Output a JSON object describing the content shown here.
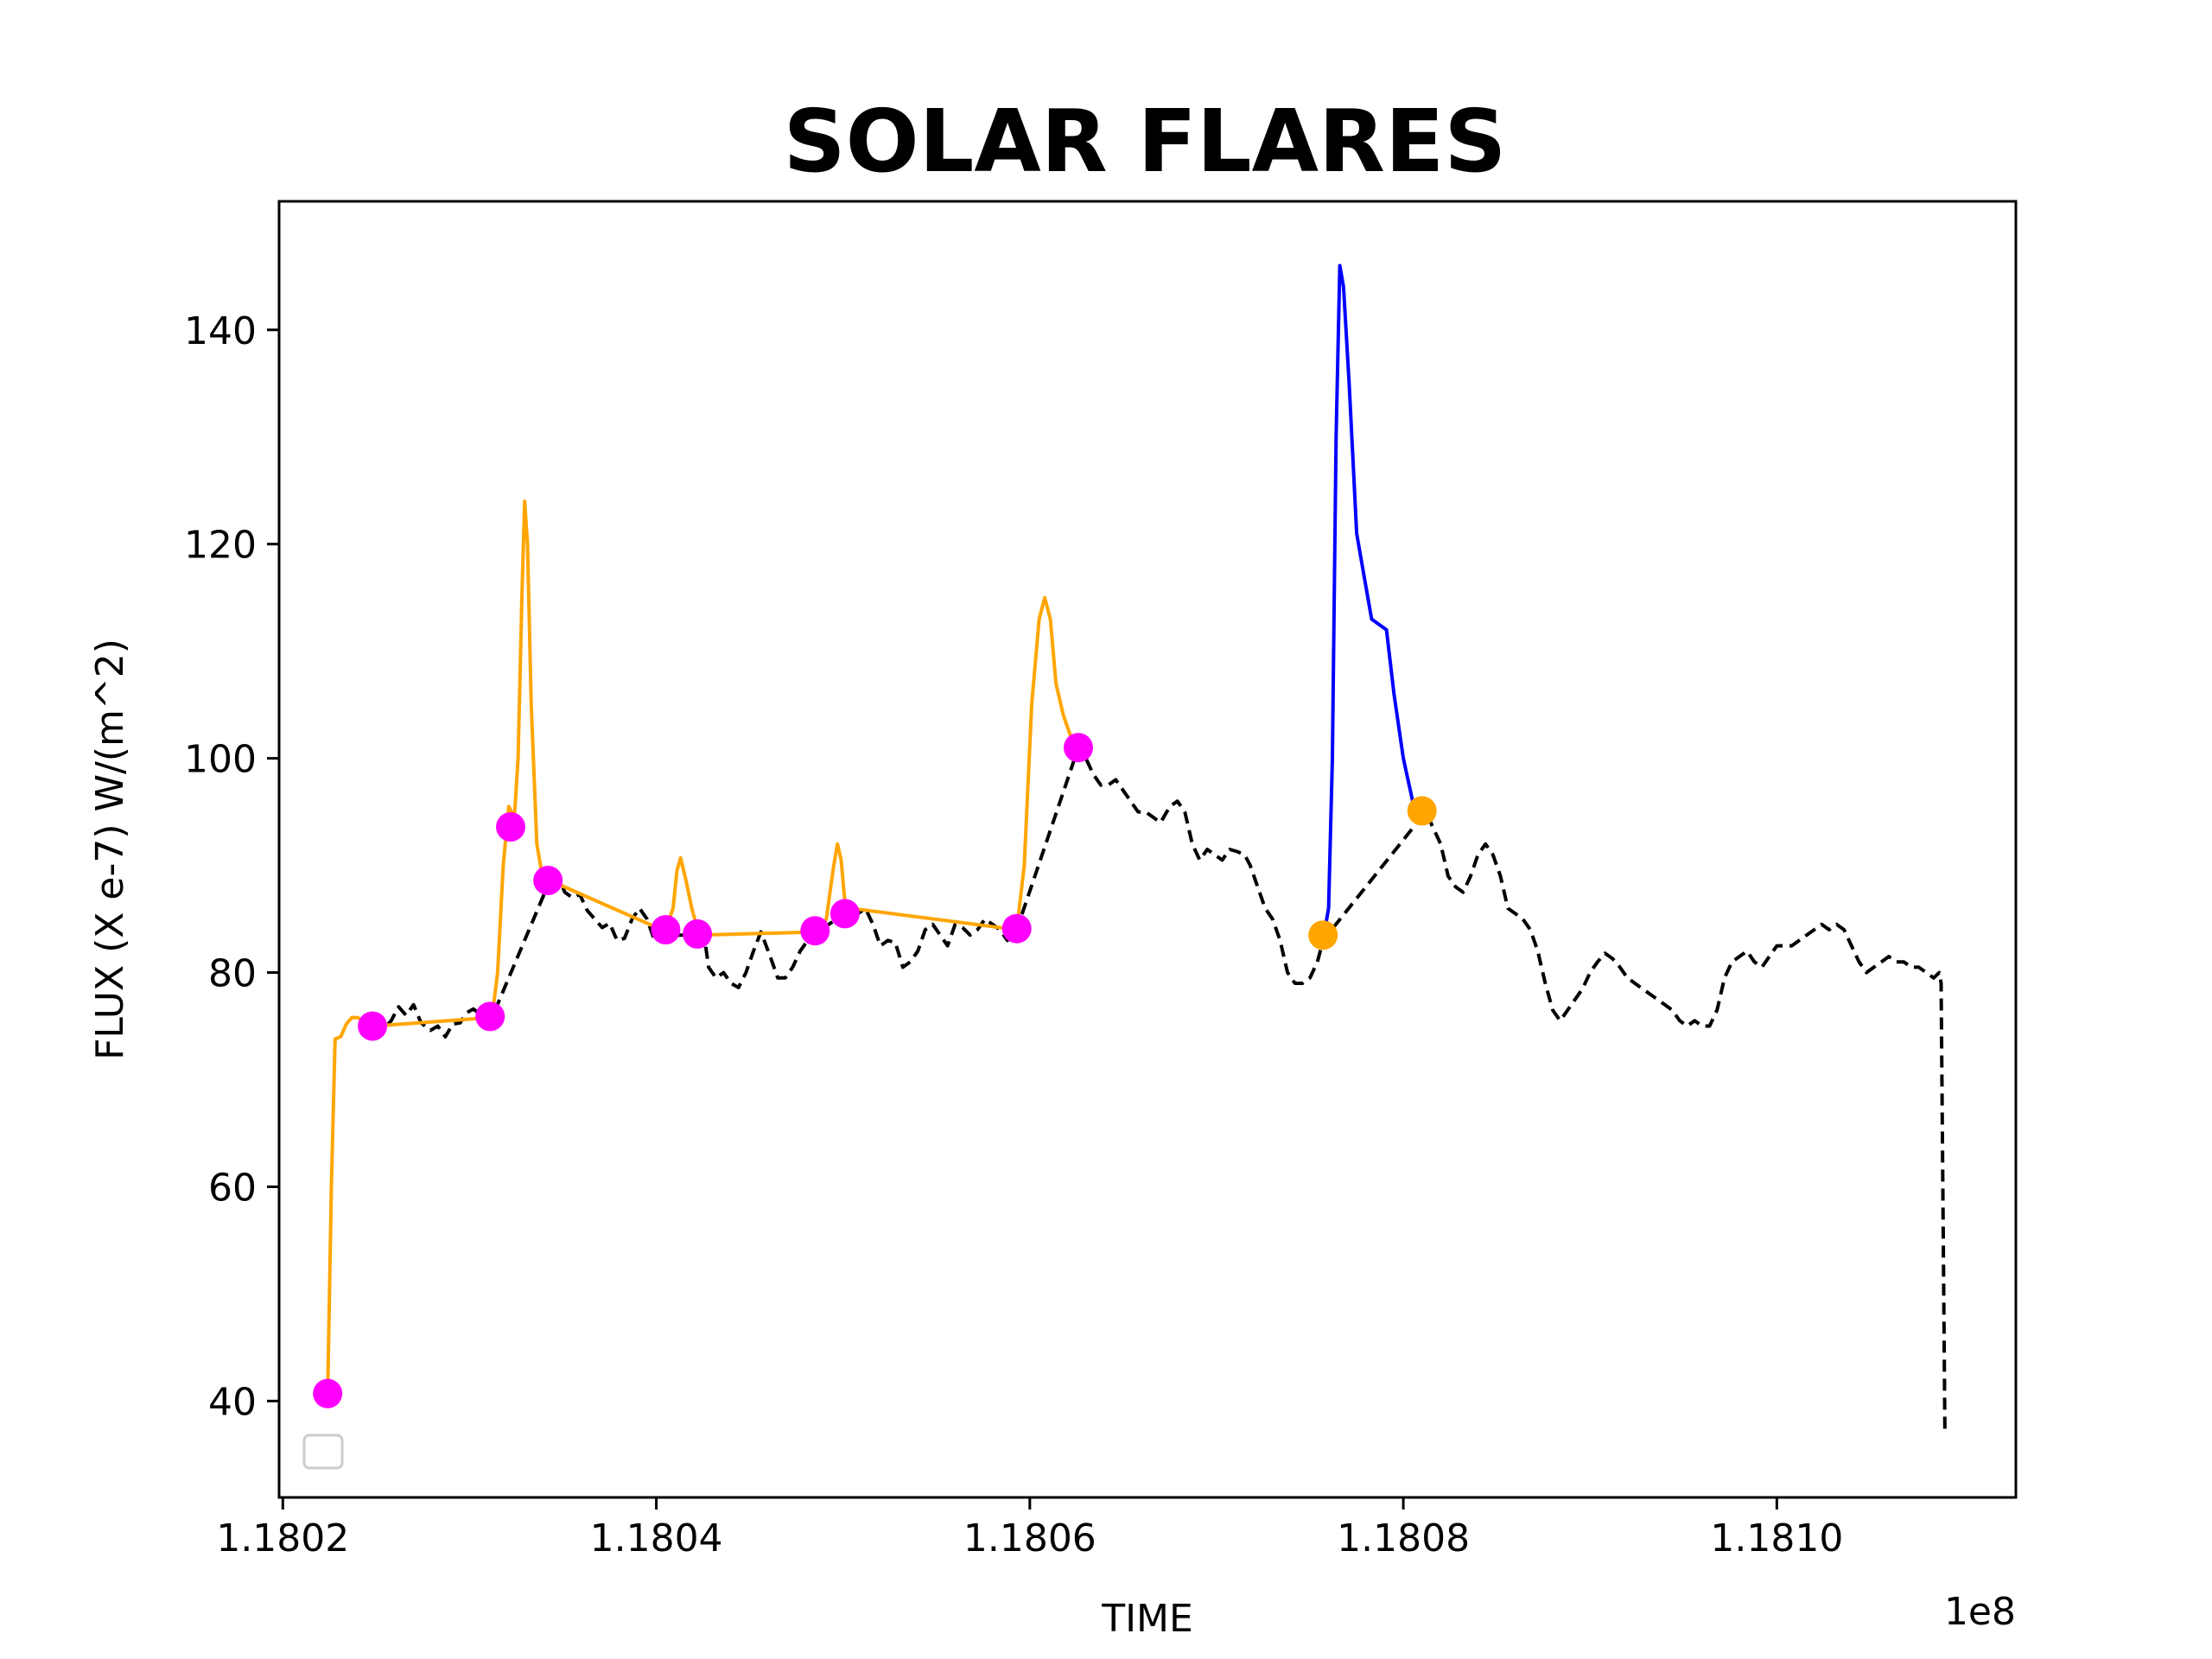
{
  "chart_data": {
    "type": "line",
    "title": "SOLAR FLARES",
    "xlabel": "TIME",
    "ylabel": "FLUX (X e-7) W/(m^2)",
    "x_offset_label": "1e8",
    "xlim": [
      118019800,
      118112800
    ],
    "ylim": [
      31,
      152
    ],
    "x_ticks": [
      {
        "value": 118020000,
        "label": "1.1802"
      },
      {
        "value": 118040000,
        "label": "1.1804"
      },
      {
        "value": 118060000,
        "label": "1.1806"
      },
      {
        "value": 118080000,
        "label": "1.1808"
      },
      {
        "value": 118100000,
        "label": "1.1810"
      }
    ],
    "y_ticks": [
      {
        "value": 40,
        "label": "40"
      },
      {
        "value": 60,
        "label": "60"
      },
      {
        "value": 80,
        "label": "80"
      },
      {
        "value": 100,
        "label": "100"
      },
      {
        "value": 120,
        "label": "120"
      },
      {
        "value": 140,
        "label": "140"
      }
    ],
    "grid": false,
    "legend": {
      "location": "lower-left",
      "entries": []
    },
    "colors": {
      "background": "#000000",
      "flare_minor": "#ffa500",
      "flare_major": "#0000ff",
      "marker_minor": "#ff00ff",
      "marker_major": "#ffa500"
    },
    "series": [
      {
        "style": "dashed",
        "color": "#000000",
        "points": [
          [
            118024900,
            75.0
          ],
          [
            118025300,
            74.5
          ],
          [
            118025800,
            75.5
          ],
          [
            118026200,
            76.8
          ],
          [
            118026600,
            76.0
          ],
          [
            118027000,
            77.0
          ],
          [
            118027400,
            75.3
          ],
          [
            118027900,
            74.6
          ],
          [
            118028300,
            75.0
          ],
          [
            118028700,
            74.0
          ],
          [
            118029100,
            75.2
          ],
          [
            118029500,
            75.3
          ],
          [
            118029800,
            76.2
          ],
          [
            118030200,
            76.6
          ],
          [
            118030600,
            76.1
          ],
          [
            118031000,
            75.5
          ],
          [
            118031200,
            75.8
          ],
          [
            118034300,
            88.6
          ],
          [
            118034600,
            89.5
          ],
          [
            118035100,
            87.5
          ],
          [
            118035500,
            87.0
          ],
          [
            118035900,
            87.3
          ],
          [
            118036300,
            85.8
          ],
          [
            118036700,
            85.0
          ],
          [
            118037100,
            84.2
          ],
          [
            118037500,
            84.6
          ],
          [
            118037900,
            83.0
          ],
          [
            118038300,
            83.2
          ],
          [
            118038700,
            85.0
          ],
          [
            118039100,
            86.0
          ],
          [
            118039500,
            85.0
          ],
          [
            118039900,
            83.0
          ],
          [
            118040300,
            83.5
          ],
          [
            118042300,
            83.5
          ],
          [
            118042600,
            83.0
          ],
          [
            118042800,
            80.5
          ],
          [
            118043200,
            79.5
          ],
          [
            118043600,
            80.0
          ],
          [
            118044000,
            79.0
          ],
          [
            118044400,
            78.6
          ],
          [
            118044800,
            80.0
          ],
          [
            118045200,
            82.0
          ],
          [
            118045600,
            83.8
          ],
          [
            118046100,
            81.5
          ],
          [
            118046500,
            79.5
          ],
          [
            118046900,
            79.5
          ],
          [
            118047300,
            80.5
          ],
          [
            118047700,
            82.0
          ],
          [
            118048100,
            83.0
          ],
          [
            118048500,
            84.0
          ],
          [
            118048700,
            83.8
          ],
          [
            118050400,
            86.0
          ],
          [
            118050800,
            85.5
          ],
          [
            118051200,
            86.0
          ],
          [
            118051600,
            84.5
          ],
          [
            118052000,
            82.5
          ],
          [
            118052400,
            83.0
          ],
          [
            118052800,
            82.8
          ],
          [
            118053200,
            80.5
          ],
          [
            118053600,
            81.0
          ],
          [
            118054000,
            82.0
          ],
          [
            118054400,
            84.0
          ],
          [
            118054800,
            84.5
          ],
          [
            118055200,
            83.5
          ],
          [
            118055600,
            82.5
          ],
          [
            118056000,
            84.5
          ],
          [
            118056400,
            84.2
          ],
          [
            118056800,
            83.5
          ],
          [
            118057200,
            84.0
          ],
          [
            118057600,
            85.0
          ],
          [
            118058000,
            84.5
          ],
          [
            118058400,
            84.0
          ],
          [
            118058800,
            83.0
          ],
          [
            118059300,
            84.0
          ],
          [
            118062600,
            101.0
          ],
          [
            118063000,
            100.0
          ],
          [
            118063400,
            98.5
          ],
          [
            118063800,
            97.5
          ],
          [
            118064200,
            97.5
          ],
          [
            118064600,
            98.0
          ],
          [
            118065000,
            97.0
          ],
          [
            118065400,
            96.0
          ],
          [
            118065800,
            95.0
          ],
          [
            118066200,
            95.0
          ],
          [
            118066600,
            94.5
          ],
          [
            118067000,
            94.0
          ],
          [
            118067500,
            95.5
          ],
          [
            118067900,
            96.0
          ],
          [
            118068300,
            95.0
          ],
          [
            118068700,
            92.0
          ],
          [
            118069100,
            90.5
          ],
          [
            118069500,
            91.5
          ],
          [
            118069900,
            91.0
          ],
          [
            118070300,
            90.5
          ],
          [
            118070700,
            91.5
          ],
          [
            118071100,
            91.3
          ],
          [
            118071500,
            91.0
          ],
          [
            118071800,
            90.0
          ],
          [
            118072200,
            88.0
          ],
          [
            118072600,
            86.0
          ],
          [
            118073000,
            85.0
          ],
          [
            118073400,
            83.0
          ],
          [
            118073800,
            80.0
          ],
          [
            118074200,
            79.0
          ],
          [
            118074600,
            79.0
          ],
          [
            118075000,
            79.5
          ],
          [
            118075400,
            81.0
          ],
          [
            118075700,
            83.0
          ],
          [
            118081200,
            95.0
          ],
          [
            118081600,
            93.5
          ],
          [
            118082000,
            92.0
          ],
          [
            118082400,
            89.0
          ],
          [
            118082800,
            88.0
          ],
          [
            118083200,
            87.5
          ],
          [
            118083600,
            89.0
          ],
          [
            118084000,
            91.0
          ],
          [
            118084400,
            92.0
          ],
          [
            118084800,
            91.0
          ],
          [
            118085200,
            89.0
          ],
          [
            118085600,
            86.0
          ],
          [
            118086000,
            85.5
          ],
          [
            118086400,
            85.0
          ],
          [
            118086800,
            84.0
          ],
          [
            118087200,
            82.0
          ],
          [
            118087600,
            79.0
          ],
          [
            118088000,
            76.5
          ],
          [
            118088400,
            75.5
          ],
          [
            118088800,
            76.5
          ],
          [
            118089200,
            77.5
          ],
          [
            118089600,
            78.5
          ],
          [
            118090000,
            80.0
          ],
          [
            118090400,
            81.0
          ],
          [
            118090800,
            81.8
          ],
          [
            118091200,
            81.3
          ],
          [
            118091600,
            80.5
          ],
          [
            118092000,
            79.5
          ],
          [
            118092400,
            79.0
          ],
          [
            118092800,
            78.5
          ],
          [
            118093200,
            78.0
          ],
          [
            118093600,
            77.5
          ],
          [
            118094000,
            77.0
          ],
          [
            118094400,
            76.5
          ],
          [
            118094800,
            75.5
          ],
          [
            118095200,
            75.0
          ],
          [
            118095600,
            75.5
          ],
          [
            118096000,
            75.0
          ],
          [
            118096400,
            75.0
          ],
          [
            118096800,
            76.5
          ],
          [
            118097200,
            79.5
          ],
          [
            118097600,
            81.0
          ],
          [
            118098000,
            81.5
          ],
          [
            118098400,
            82.0
          ],
          [
            118098800,
            81.0
          ],
          [
            118099200,
            80.5
          ],
          [
            118099600,
            81.5
          ],
          [
            118100000,
            82.5
          ],
          [
            118100400,
            82.5
          ],
          [
            118100800,
            82.5
          ],
          [
            118101200,
            83.0
          ],
          [
            118101600,
            83.5
          ],
          [
            118102000,
            84.0
          ],
          [
            118102400,
            84.5
          ],
          [
            118102800,
            84.0
          ],
          [
            118103200,
            84.5
          ],
          [
            118103600,
            84.0
          ],
          [
            118104000,
            82.5
          ],
          [
            118104400,
            81.0
          ],
          [
            118104800,
            80.0
          ],
          [
            118105200,
            80.5
          ],
          [
            118105600,
            81.0
          ],
          [
            118106000,
            81.5
          ],
          [
            118106400,
            81.0
          ],
          [
            118106800,
            81.0
          ],
          [
            118107200,
            80.5
          ],
          [
            118107600,
            80.5
          ],
          [
            118108000,
            80.0
          ],
          [
            118108400,
            79.5
          ],
          [
            118108700,
            80.0
          ],
          [
            118108800,
            79.0
          ],
          [
            118109000,
            37.0
          ]
        ]
      },
      {
        "style": "solid",
        "color": "#ffa500",
        "points": [
          [
            118022400,
            40.5
          ],
          [
            118022600,
            60.0
          ],
          [
            118022800,
            73.8
          ],
          [
            118023100,
            74.0
          ],
          [
            118023400,
            75.2
          ],
          [
            118023700,
            75.8
          ],
          [
            118024000,
            75.8
          ],
          [
            118024400,
            75.4
          ],
          [
            118024900,
            75.0
          ],
          [
            118031200,
            75.8
          ],
          [
            118031500,
            80.0
          ],
          [
            118031800,
            90.0
          ],
          [
            118032100,
            95.5
          ],
          [
            118032400,
            94.5
          ],
          [
            118032600,
            100.0
          ],
          [
            118032800,
            115.0
          ],
          [
            118032950,
            124.0
          ],
          [
            118033100,
            120.0
          ],
          [
            118033300,
            105.0
          ],
          [
            118033600,
            92.0
          ],
          [
            118033900,
            89.0
          ],
          [
            118034300,
            88.6
          ],
          [
            118040300,
            84.0
          ],
          [
            118040600,
            84.5
          ],
          [
            118040900,
            86.0
          ],
          [
            118041100,
            89.5
          ],
          [
            118041300,
            90.7
          ],
          [
            118041600,
            88.5
          ],
          [
            118041900,
            86.0
          ],
          [
            118042300,
            83.5
          ],
          [
            118048700,
            83.8
          ],
          [
            118049100,
            85.0
          ],
          [
            118049500,
            90.0
          ],
          [
            118049700,
            92.0
          ],
          [
            118049900,
            90.5
          ],
          [
            118050100,
            86.5
          ],
          [
            118050400,
            86.0
          ],
          [
            118059300,
            84.0
          ],
          [
            118059700,
            90.0
          ],
          [
            118060100,
            105.0
          ],
          [
            118060500,
            113.0
          ],
          [
            118060800,
            115.0
          ],
          [
            118061100,
            113.0
          ],
          [
            118061400,
            107.0
          ],
          [
            118061800,
            104.0
          ],
          [
            118062200,
            102.0
          ],
          [
            118062600,
            101.0
          ]
        ]
      },
      {
        "style": "solid",
        "color": "#0000ff",
        "points": [
          [
            118075700,
            83.0
          ],
          [
            118076000,
            86.0
          ],
          [
            118076200,
            100.0
          ],
          [
            118076400,
            130.0
          ],
          [
            118076600,
            146.0
          ],
          [
            118076800,
            144.0
          ],
          [
            118077100,
            135.0
          ],
          [
            118077500,
            121.0
          ],
          [
            118077900,
            117.0
          ],
          [
            118078300,
            113.0
          ],
          [
            118078700,
            112.5
          ],
          [
            118079100,
            112.0
          ],
          [
            118079500,
            106.0
          ],
          [
            118080000,
            100.0
          ],
          [
            118080500,
            96.0
          ],
          [
            118081200,
            95.0
          ]
        ]
      }
    ],
    "markers": [
      {
        "color": "#ff00ff",
        "points": [
          [
            118022400,
            40.7
          ],
          [
            118024800,
            75.0
          ],
          [
            118031100,
            75.9
          ],
          [
            118032200,
            93.6
          ],
          [
            118034200,
            88.6
          ],
          [
            118040500,
            84.0
          ],
          [
            118042200,
            83.6
          ],
          [
            118048500,
            83.9
          ],
          [
            118050100,
            85.5
          ],
          [
            118059300,
            84.1
          ],
          [
            118062600,
            101.0
          ]
        ]
      },
      {
        "color": "#ffa500",
        "points": [
          [
            118075700,
            83.5
          ],
          [
            118081000,
            95.1
          ]
        ]
      }
    ]
  }
}
